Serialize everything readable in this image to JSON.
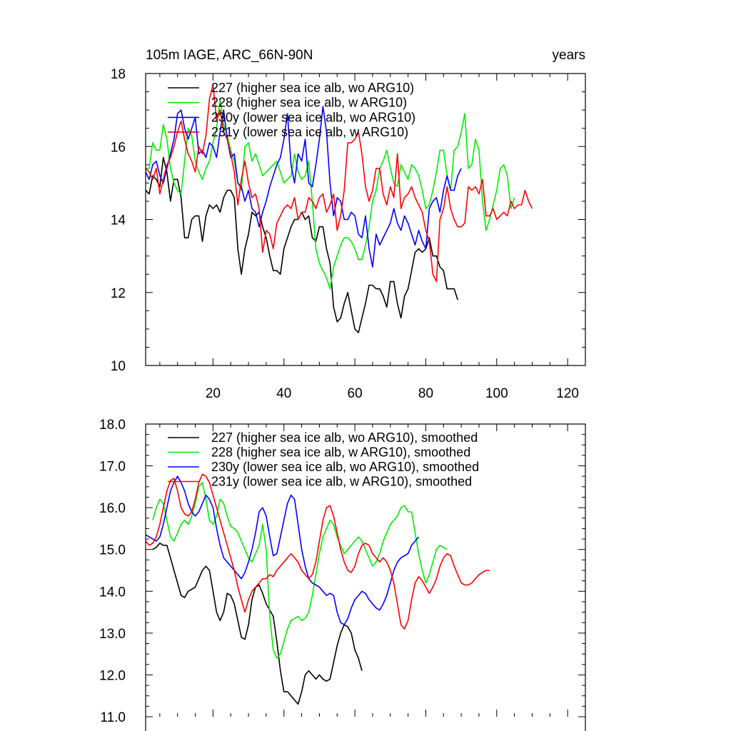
{
  "figure": {
    "title_left": "105m IAGE, ARC_66N-90N",
    "title_right": "years"
  },
  "colors": {
    "227": "#000000",
    "228": "#00ee00",
    "230y": "#0000ff",
    "231y": "#ff0000"
  },
  "chart_data": [
    {
      "type": "line",
      "xlim": [
        1,
        125
      ],
      "ylim": [
        10,
        18
      ],
      "x_ticks": [
        20,
        40,
        60,
        80,
        100,
        120
      ],
      "x_tick_labels": [
        "20",
        "40",
        "60",
        "80",
        "100",
        "120"
      ],
      "y_ticks": [
        10,
        12,
        14,
        16,
        18
      ],
      "y_tick_labels": [
        "10",
        "12",
        "14",
        "16",
        "18"
      ],
      "series": [
        {
          "key": "227",
          "name": "227 (higher sea ice alb, wo ARG10)",
          "x_start": 1,
          "values": [
            14.8,
            14.7,
            15.2,
            15.1,
            14.9,
            15.7,
            15.3,
            14.5,
            15.1,
            15.1,
            14.6,
            13.5,
            13.5,
            14.0,
            14.1,
            14.1,
            13.4,
            14.1,
            14.4,
            14.3,
            14.4,
            14.2,
            14.6,
            14.8,
            14.8,
            14.6,
            13.2,
            12.5,
            13.2,
            13.6,
            14.2,
            14.1,
            14.2,
            13.8,
            13.5,
            13.0,
            12.6,
            12.6,
            12.5,
            13.2,
            13.5,
            13.8,
            14.0,
            14.0,
            14.2,
            14.0,
            14.1,
            13.5,
            13.4,
            13.8,
            13.8,
            13.2,
            12.8,
            11.6,
            11.2,
            11.3,
            11.7,
            12.0,
            11.5,
            11.0,
            10.9,
            11.3,
            11.7,
            12.2,
            12.2,
            12.1,
            12.1,
            11.9,
            11.6,
            12.3,
            12.3,
            11.7,
            11.3,
            11.9,
            12.1,
            12.6,
            13.1,
            13.2,
            13.1,
            13.2,
            13.5,
            13.0,
            13.0,
            12.7,
            12.6,
            12.1,
            12.1,
            12.1,
            11.8
          ]
        },
        {
          "key": "228",
          "name": "228 (higher sea ice alb, w ARG10)",
          "x_start": 1,
          "values": [
            15.4,
            15.4,
            16.1,
            15.9,
            15.9,
            16.6,
            16.2,
            15.4,
            15.0,
            14.8,
            14.7,
            15.6,
            16.5,
            16.3,
            15.6,
            15.3,
            15.1,
            15.4,
            15.6,
            16.1,
            16.5,
            17.3,
            16.6,
            16.3,
            15.9,
            15.6,
            15.0,
            14.8,
            16.0,
            16.1,
            15.6,
            15.8,
            15.5,
            15.2,
            15.3,
            15.4,
            15.5,
            15.6,
            15.3,
            15.0,
            15.1,
            15.2,
            15.8,
            15.3,
            15.1,
            15.2,
            15.6,
            14.5,
            13.2,
            12.8,
            12.6,
            12.4,
            12.1,
            12.7,
            13.0,
            13.3,
            13.5,
            13.5,
            13.4,
            13.2,
            12.9,
            12.9,
            13.3,
            13.8,
            14.5,
            14.8,
            15.4,
            15.6,
            15.9,
            15.4,
            15.0,
            14.9,
            15.5,
            15.3,
            15.1,
            15.5,
            15.4,
            15.2,
            14.8,
            14.3,
            14.4,
            14.8,
            15.3,
            15.9,
            15.9,
            15.2,
            14.8,
            15.9,
            16.0,
            16.4,
            16.9,
            15.4,
            15.5,
            16.2,
            15.9,
            14.5,
            13.7,
            14.0,
            14.4,
            14.8,
            15.4,
            15.5,
            15.2,
            14.3,
            14.6
          ]
        },
        {
          "key": "230y",
          "name": "230y (lower sea ice alb, wo ARG10)",
          "x_start": 1,
          "values": [
            15.3,
            15.1,
            15.5,
            15.6,
            15.2,
            15.0,
            15.4,
            15.8,
            16.2,
            16.9,
            17.0,
            16.5,
            16.2,
            16.5,
            16.8,
            15.8,
            15.9,
            15.7,
            16.1,
            16.0,
            15.7,
            16.4,
            17.0,
            16.2,
            15.7,
            15.8,
            15.0,
            14.9,
            14.5,
            14.8,
            14.3,
            14.2,
            13.8,
            14.2,
            14.5,
            14.9,
            15.2,
            15.5,
            15.7,
            16.2,
            16.9,
            15.5,
            15.0,
            15.8,
            15.6,
            16.2,
            15.0,
            14.9,
            15.5,
            16.2,
            17.1,
            16.4,
            15.0,
            14.1,
            14.6,
            14.5,
            14.0,
            14.0,
            14.2,
            14.1,
            13.6,
            13.5,
            14.1,
            13.2,
            12.7,
            13.6,
            13.3,
            13.5,
            13.7,
            13.9,
            14.3,
            13.9,
            13.7,
            14.1,
            13.9,
            13.6,
            13.3,
            13.7,
            13.4,
            13.2,
            14.3,
            14.5,
            14.6,
            14.2,
            14.8,
            15.2,
            14.8,
            14.8,
            15.2,
            15.4
          ]
        },
        {
          "key": "231y",
          "name": "231y (lower sea ice alb, w ARG10)",
          "x_start": 1,
          "values": [
            15.4,
            15.3,
            15.1,
            15.4,
            14.7,
            15.1,
            15.5,
            15.7,
            16.0,
            16.4,
            16.7,
            16.2,
            15.8,
            15.6,
            15.3,
            16.0,
            15.8,
            16.3,
            17.3,
            17.7,
            16.7,
            17.0,
            16.4,
            16.2,
            15.8,
            15.3,
            14.4,
            15.1,
            15.6,
            15.0,
            14.6,
            14.7,
            14.3,
            13.1,
            13.7,
            13.6,
            13.2,
            13.9,
            14.1,
            14.3,
            14.4,
            14.3,
            14.6,
            14.0,
            14.2,
            14.2,
            14.6,
            14.5,
            14.3,
            14.6,
            14.7,
            14.2,
            14.4,
            14.7,
            13.7,
            14.1,
            14.8,
            16.1,
            16.1,
            16.2,
            16.4,
            15.8,
            14.9,
            14.5,
            14.8,
            15.4,
            15.4,
            14.7,
            14.4,
            14.9,
            14.6,
            15.8,
            14.3,
            14.6,
            14.7,
            14.9,
            14.6,
            14.4,
            14.2,
            13.7,
            13.4,
            12.5,
            12.3,
            14.0,
            14.3,
            14.9,
            14.3,
            14.0,
            13.8,
            13.8,
            13.9,
            14.9,
            14.8,
            14.9,
            14.7,
            15.1,
            14.1,
            14.1,
            14.3,
            14.0,
            14.1,
            14.2,
            14.1,
            14.5,
            14.3,
            14.4,
            14.4,
            14.8,
            14.5,
            14.3
          ]
        }
      ]
    },
    {
      "type": "line",
      "xlim": [
        1,
        125
      ],
      "ylim": [
        11,
        18
      ],
      "x_ticks": [
        20,
        40,
        60,
        80,
        100,
        120
      ],
      "y_ticks": [
        11,
        12,
        13,
        14,
        15,
        16,
        17,
        18
      ],
      "y_tick_labels": [
        "11.0",
        "12.0",
        "13.0",
        "14.0",
        "15.0",
        "16.0",
        "17.0",
        "18.0"
      ],
      "series": [
        {
          "key": "227",
          "name": "227 (higher sea ice alb, wo ARG10), smoothed",
          "x_start": 3,
          "values": [
            15.0,
            15.05,
            15.15,
            15.1,
            15.1,
            14.8,
            14.5,
            14.2,
            13.9,
            13.85,
            14.0,
            14.05,
            14.1,
            14.3,
            14.5,
            14.6,
            14.5,
            14.0,
            13.5,
            13.3,
            13.5,
            13.95,
            13.9,
            13.7,
            13.3,
            12.9,
            12.85,
            13.2,
            13.8,
            14.1,
            14.15,
            13.95,
            13.7,
            13.55,
            13.4,
            12.8,
            12.1,
            11.6,
            11.6,
            11.5,
            11.4,
            11.3,
            11.6,
            12.0,
            12.1,
            12.0,
            11.9,
            12.0,
            11.9,
            11.85,
            11.9,
            12.3,
            12.7,
            13.0,
            13.2,
            13.15,
            13.0,
            12.6,
            12.4,
            12.1
          ]
        },
        {
          "key": "228",
          "name": "228 (higher sea ice alb, w ARG10), smoothed",
          "x_start": 3,
          "values": [
            15.7,
            16.0,
            16.2,
            16.1,
            15.7,
            15.3,
            15.2,
            15.4,
            15.6,
            15.7,
            15.6,
            15.8,
            16.1,
            16.5,
            16.6,
            16.2,
            15.7,
            15.6,
            15.8,
            16.2,
            16.1,
            15.8,
            15.55,
            15.5,
            15.4,
            15.2,
            15.0,
            14.8,
            14.7,
            14.9,
            15.1,
            15.6,
            15.0,
            13.4,
            12.6,
            12.4,
            12.5,
            12.8,
            13.1,
            13.3,
            13.35,
            13.4,
            13.3,
            13.35,
            13.5,
            13.9,
            14.4,
            14.9,
            15.3,
            15.5,
            15.7,
            15.6,
            15.3,
            15.1,
            14.9,
            15.0,
            15.1,
            15.2,
            15.3,
            15.2,
            15.0,
            14.8,
            14.6,
            14.7,
            14.9,
            15.2,
            15.4,
            15.6,
            15.7,
            15.8,
            16.0,
            16.05,
            15.9,
            15.9,
            15.4,
            14.9,
            14.5,
            14.2,
            14.4,
            14.7,
            15.0,
            15.1,
            15.05,
            15.0
          ]
        },
        {
          "key": "230y",
          "name": "230y (lower sea ice alb, wo ARG10), smoothed",
          "x_start": 1,
          "values": [
            15.35,
            15.3,
            15.25,
            15.2,
            15.3,
            15.6,
            16.0,
            16.4,
            16.6,
            16.75,
            16.6,
            16.4,
            16.1,
            15.9,
            15.8,
            15.9,
            16.1,
            16.3,
            16.2,
            16.0,
            15.5,
            15.1,
            14.8,
            14.7,
            14.6,
            14.5,
            14.4,
            14.3,
            14.45,
            14.7,
            15.0,
            15.4,
            15.9,
            16.0,
            15.8,
            15.3,
            14.85,
            14.9,
            15.3,
            15.7,
            16.1,
            16.3,
            16.2,
            15.6,
            15.0,
            14.6,
            14.3,
            14.2,
            14.15,
            14.1,
            14.0,
            13.9,
            13.95,
            13.9,
            13.5,
            13.25,
            13.2,
            13.35,
            13.6,
            13.8,
            13.9,
            14.0,
            13.95,
            13.8,
            13.7,
            13.6,
            13.55,
            13.7,
            13.9,
            14.2,
            14.5,
            14.7,
            14.8,
            14.85,
            14.9,
            15.1,
            15.2,
            15.3
          ]
        },
        {
          "key": "231y",
          "name": "231y (lower sea ice alb, w ARG10), smoothed",
          "x_start": 1,
          "values": [
            15.2,
            15.1,
            15.15,
            15.3,
            15.6,
            16.0,
            16.4,
            16.65,
            16.7,
            16.4,
            16.0,
            15.85,
            15.8,
            15.9,
            16.2,
            16.6,
            16.8,
            16.75,
            16.6,
            16.3,
            16.0,
            15.7,
            15.4,
            15.1,
            14.8,
            14.5,
            14.1,
            13.8,
            13.5,
            13.8,
            14.0,
            14.1,
            14.2,
            14.3,
            14.3,
            14.4,
            14.35,
            14.5,
            14.6,
            14.7,
            14.8,
            14.9,
            14.8,
            14.7,
            14.5,
            14.4,
            14.3,
            14.4,
            14.7,
            15.2,
            15.7,
            16.0,
            16.05,
            15.8,
            15.4,
            15.0,
            14.7,
            14.5,
            14.45,
            14.6,
            14.9,
            15.1,
            15.15,
            15.1,
            14.9,
            14.8,
            14.7,
            14.8,
            14.7,
            14.5,
            14.2,
            13.7,
            13.2,
            13.1,
            13.3,
            13.8,
            14.2,
            14.35,
            14.25,
            14.1,
            13.95,
            14.1,
            14.3,
            14.6,
            14.8,
            14.9,
            14.85,
            14.6,
            14.4,
            14.2,
            14.15,
            14.15,
            14.2,
            14.3,
            14.4,
            14.45,
            14.5,
            14.5
          ]
        }
      ]
    }
  ]
}
